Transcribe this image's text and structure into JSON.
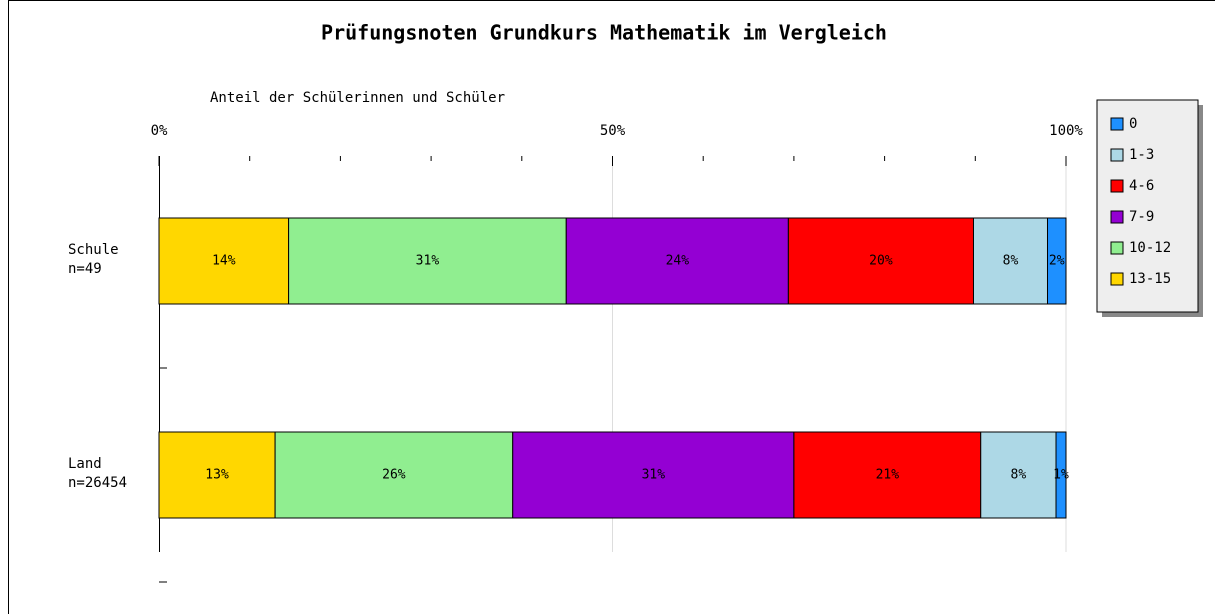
{
  "chart_data": {
    "type": "stacked_barh",
    "title": "Prüfungsnoten Grundkurs Mathematik im Vergleich",
    "xlabel": "Anteil der Schülerinnen und Schüler",
    "categories": [
      "Schule\nn=49",
      "Land\nn=26454"
    ],
    "series": [
      {
        "name": "0",
        "color": "#1e90ff",
        "values": [
          2.04,
          1.1
        ],
        "value_labels": [
          "2%",
          "1%"
        ]
      },
      {
        "name": "1-3",
        "color": "#add8e6",
        "values": [
          8.16,
          8.3
        ],
        "value_labels": [
          "8%",
          "8%"
        ]
      },
      {
        "name": "4-6",
        "color": "#ff0000",
        "values": [
          20.41,
          20.6
        ],
        "value_labels": [
          "20%",
          "21%"
        ]
      },
      {
        "name": "7-9",
        "color": "#9400d3",
        "values": [
          24.49,
          31.0
        ],
        "value_labels": [
          "24%",
          "31%"
        ]
      },
      {
        "name": "10-12",
        "color": "#90ee90",
        "values": [
          30.61,
          26.2
        ],
        "value_labels": [
          "31%",
          "26%"
        ]
      },
      {
        "name": "13-15",
        "color": "#ffd700",
        "values": [
          14.29,
          12.8
        ],
        "value_labels": [
          "14%",
          "13%"
        ]
      }
    ],
    "xlim": [
      0,
      100
    ],
    "xticks": [
      {
        "value": 0,
        "label": "0%"
      },
      {
        "value": 50,
        "label": "50%"
      },
      {
        "value": 100,
        "label": "100%"
      }
    ],
    "xminorticks": [
      10,
      20,
      30,
      40,
      60,
      70,
      80,
      90
    ],
    "grid": true,
    "legend": "upper right"
  }
}
